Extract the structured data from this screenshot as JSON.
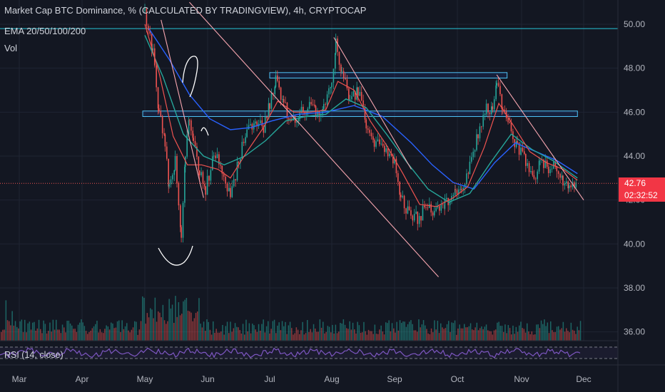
{
  "header": {
    "title": "Market Cap BTC Dominance, % (CALCULATED BY TRADINGVIEW), 4h, CRYPTOCAP",
    "ema_label": "EMA 20/50/100/200",
    "vol_label": "Vol"
  },
  "rsi": {
    "label": "RSI (14, close)"
  },
  "price_badge": {
    "value": "42.76",
    "countdown": "02:32:52",
    "color": "#f23645"
  },
  "colors": {
    "background": "#131722",
    "up": "#26a69a",
    "down": "#ef5350",
    "ema20": "#ef5350",
    "ema50": "#26a69a",
    "ema100": "#2962ff",
    "rsi": "#7e57c2",
    "trendline": "#f7a6b0",
    "drawing": "#ffffff",
    "hline": "#26c6da"
  },
  "chart_data": {
    "type": "line",
    "title": "Market Cap BTC Dominance, % (CALCULATED BY TRADINGVIEW), 4h, CRYPTOCAP",
    "xlabel": "",
    "ylabel": "",
    "ylim": [
      35.5,
      51
    ],
    "yticks": [
      "50.00",
      "48.00",
      "46.00",
      "44.00",
      "42.00",
      "40.00",
      "38.00",
      "36.00"
    ],
    "xticks": [
      "Mar",
      "Apr",
      "May",
      "Jun",
      "Jul",
      "Aug",
      "Sep",
      "Oct",
      "Nov",
      "Dec"
    ],
    "grid": true,
    "price_path_approx": [
      [
        "May 01",
        50.6
      ],
      [
        "May 05",
        48.8
      ],
      [
        "May 08",
        46.0
      ],
      [
        "May 11",
        44.6
      ],
      [
        "May 13",
        42.6
      ],
      [
        "May 16",
        43.8
      ],
      [
        "May 19",
        40.4
      ],
      [
        "May 21",
        44.2
      ],
      [
        "May 23",
        45.8
      ],
      [
        "May 25",
        44.6
      ],
      [
        "May 28",
        43.4
      ],
      [
        "May 31",
        42.5
      ],
      [
        "Jun 04",
        44.0
      ],
      [
        "Jun 08",
        43.5
      ],
      [
        "Jun 12",
        42.0
      ],
      [
        "Jun 16",
        43.9
      ],
      [
        "Jun 20",
        45.0
      ],
      [
        "Jun 24",
        45.6
      ],
      [
        "Jun 28",
        45.2
      ],
      [
        "Jul 01",
        46.4
      ],
      [
        "Jul 04",
        47.5
      ],
      [
        "Jul 08",
        46.4
      ],
      [
        "Jul 12",
        45.4
      ],
      [
        "Jul 16",
        45.9
      ],
      [
        "Jul 20",
        46.3
      ],
      [
        "Jul 24",
        46.1
      ],
      [
        "Jul 28",
        46.2
      ],
      [
        "Aug 01",
        47.6
      ],
      [
        "Aug 03",
        49.2
      ],
      [
        "Aug 06",
        47.8
      ],
      [
        "Aug 10",
        46.5
      ],
      [
        "Aug 14",
        47.0
      ],
      [
        "Aug 18",
        45.4
      ],
      [
        "Aug 22",
        44.6
      ],
      [
        "Aug 27",
        44.3
      ],
      [
        "Sep 01",
        43.7
      ],
      [
        "Sep 04",
        42.2
      ],
      [
        "Sep 08",
        41.3
      ],
      [
        "Sep 12",
        41.2
      ],
      [
        "Sep 16",
        41.6
      ],
      [
        "Sep 20",
        41.4
      ],
      [
        "Sep 25",
        41.9
      ],
      [
        "Sep 30",
        42.4
      ],
      [
        "Oct 03",
        42.5
      ],
      [
        "Oct 07",
        43.5
      ],
      [
        "Oct 11",
        45.1
      ],
      [
        "Oct 15",
        46.3
      ],
      [
        "Oct 18",
        46.1
      ],
      [
        "Oct 20",
        47.3
      ],
      [
        "Oct 23",
        46.2
      ],
      [
        "Oct 27",
        45.0
      ],
      [
        "Oct 30",
        44.4
      ],
      [
        "Nov 03",
        43.8
      ],
      [
        "Nov 07",
        42.8
      ],
      [
        "Nov 10",
        43.9
      ],
      [
        "Nov 14",
        43.3
      ],
      [
        "Nov 18",
        43.6
      ],
      [
        "Nov 21",
        42.9
      ],
      [
        "Nov 24",
        42.7
      ],
      [
        "Nov 28",
        42.76
      ]
    ],
    "ema_20_approx": [
      [
        "May 01",
        50.0
      ],
      [
        "May 08",
        47.8
      ],
      [
        "May 15",
        44.9
      ],
      [
        "May 22",
        43.6
      ],
      [
        "May 29",
        43.6
      ],
      [
        "Jun 06",
        43.4
      ],
      [
        "Jun 12",
        43.0
      ],
      [
        "Jun 20",
        44.2
      ],
      [
        "Jun 28",
        45.3
      ],
      [
        "Jul 05",
        46.5
      ],
      [
        "Jul 13",
        46.0
      ],
      [
        "Jul 21",
        46.0
      ],
      [
        "Jul 29",
        46.1
      ],
      [
        "Aug 04",
        47.4
      ],
      [
        "Aug 12",
        47.0
      ],
      [
        "Aug 20",
        45.6
      ],
      [
        "Aug 28",
        44.5
      ],
      [
        "Sep 05",
        43.2
      ],
      [
        "Sep 13",
        41.8
      ],
      [
        "Sep 21",
        41.7
      ],
      [
        "Sep 29",
        42.1
      ],
      [
        "Oct 06",
        42.6
      ],
      [
        "Oct 14",
        44.4
      ],
      [
        "Oct 21",
        46.4
      ],
      [
        "Oct 28",
        45.4
      ],
      [
        "Nov 05",
        44.2
      ],
      [
        "Nov 13",
        43.7
      ],
      [
        "Nov 21",
        43.4
      ],
      [
        "Nov 28",
        42.9
      ]
    ],
    "ema_50_approx": [
      [
        "May 01",
        49.5
      ],
      [
        "May 10",
        47.6
      ],
      [
        "May 20",
        45.0
      ],
      [
        "May 30",
        44.0
      ],
      [
        "Jun 09",
        43.6
      ],
      [
        "Jun 19",
        44.0
      ],
      [
        "Jun 29",
        44.7
      ],
      [
        "Jul 09",
        45.6
      ],
      [
        "Jul 19",
        45.8
      ],
      [
        "Jul 29",
        45.9
      ],
      [
        "Aug 08",
        46.6
      ],
      [
        "Aug 18",
        46.2
      ],
      [
        "Aug 28",
        45.0
      ],
      [
        "Sep 07",
        43.7
      ],
      [
        "Sep 17",
        42.5
      ],
      [
        "Sep 27",
        41.9
      ],
      [
        "Oct 07",
        42.3
      ],
      [
        "Oct 17",
        43.7
      ],
      [
        "Oct 27",
        45.0
      ],
      [
        "Nov 06",
        44.3
      ],
      [
        "Nov 16",
        43.8
      ],
      [
        "Nov 28",
        43.0
      ]
    ],
    "ema_100_approx": [
      [
        "May 03",
        49.8
      ],
      [
        "May 13",
        48.4
      ],
      [
        "May 23",
        46.8
      ],
      [
        "Jun 02",
        45.7
      ],
      [
        "Jun 12",
        45.2
      ],
      [
        "Jun 22",
        45.3
      ],
      [
        "Jul 02",
        45.6
      ],
      [
        "Jul 15",
        45.9
      ],
      [
        "Jul 29",
        46.0
      ],
      [
        "Aug 12",
        46.3
      ],
      [
        "Aug 26",
        45.8
      ],
      [
        "Sep 09",
        44.6
      ],
      [
        "Sep 19",
        43.6
      ],
      [
        "Sep 29",
        42.8
      ],
      [
        "Oct 09",
        42.5
      ],
      [
        "Oct 19",
        43.7
      ],
      [
        "Oct 29",
        44.6
      ],
      [
        "Nov 08",
        44.2
      ],
      [
        "Nov 18",
        43.8
      ],
      [
        "Nov 28",
        43.2
      ]
    ],
    "drawings": {
      "horizontal_line": 49.8,
      "zones": [
        {
          "from": "Jul 01",
          "to": "Oct 25",
          "low": 47.55,
          "high": 47.8
        },
        {
          "from": "Apr 30",
          "to": "Nov 28",
          "low": 45.8,
          "high": 46.05
        }
      ],
      "trendlines": [
        {
          "from": [
            "May 23",
            51.0
          ],
          "to": [
            "Sep 22",
            38.5
          ]
        },
        {
          "from": [
            "Aug 02",
            49.4
          ],
          "to": [
            "Sep 09",
            43.4
          ]
        },
        {
          "from": [
            "Oct 20",
            47.7
          ],
          "to": [
            "Dec 01",
            42.0
          ]
        },
        {
          "from": [
            "May 09",
            50.2
          ],
          "to": [
            "May 30",
            42.1
          ]
        }
      ]
    },
    "current_price": 42.76
  }
}
